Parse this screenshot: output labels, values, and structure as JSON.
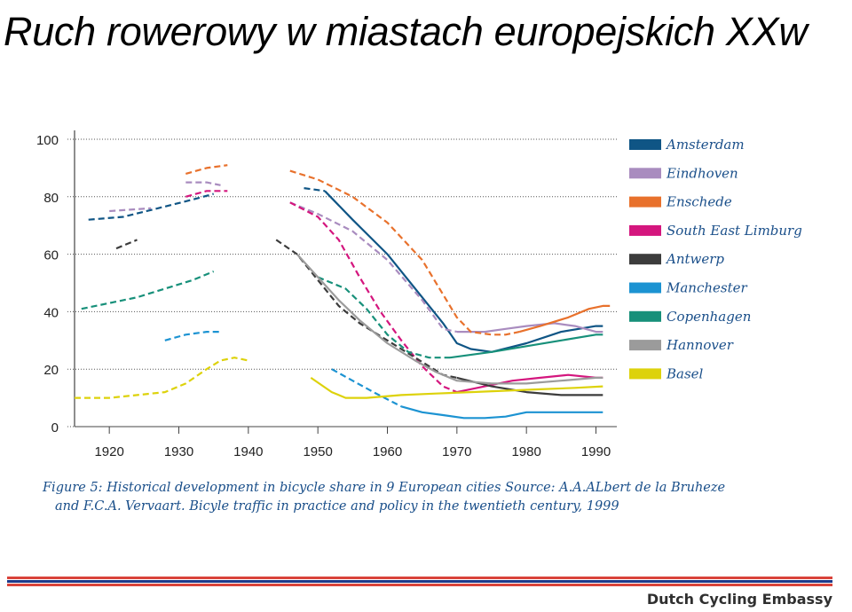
{
  "slide": {
    "title": "Ruch rowerowy w miastach europejskich XXw",
    "caption_line1": "Figure 5: Historical development in bicycle share in 9 European cities Source: A.A.ALbert de la Bruheze",
    "caption_line2": "and F.C.A. Vervaart. Bicyle traffic in practice and policy in the twentieth century, 1999",
    "footer": "Dutch Cycling Embassy",
    "stripe_colors": [
      "#d9433a",
      "#1e3a8a",
      "#d9433a"
    ]
  },
  "chart_data": {
    "type": "line",
    "title": "",
    "xlabel": "",
    "ylabel": "",
    "xlim": [
      1915,
      1993
    ],
    "ylim": [
      0,
      100
    ],
    "xticks": [
      1920,
      1930,
      1940,
      1950,
      1960,
      1970,
      1980,
      1990
    ],
    "yticks": [
      0,
      20,
      40,
      60,
      80,
      100
    ],
    "grid": "dotted horizontal",
    "legend": "right",
    "series": [
      {
        "name": "Amsterdam",
        "color": "#0f5585",
        "segments": [
          {
            "style": "dashed",
            "points": [
              [
                1917,
                72
              ],
              [
                1922,
                73
              ],
              [
                1927,
                76
              ],
              [
                1932,
                79
              ],
              [
                1935,
                81
              ]
            ]
          },
          {
            "style": "dashed",
            "points": [
              [
                1948,
                83
              ],
              [
                1951,
                82
              ]
            ]
          },
          {
            "style": "solid",
            "points": [
              [
                1951,
                82
              ],
              [
                1955,
                72
              ],
              [
                1960,
                60
              ],
              [
                1965,
                45
              ],
              [
                1968,
                36
              ],
              [
                1970,
                29
              ],
              [
                1972,
                27
              ],
              [
                1975,
                26
              ],
              [
                1980,
                29
              ],
              [
                1985,
                33
              ],
              [
                1990,
                35
              ],
              [
                1991,
                35
              ]
            ]
          }
        ]
      },
      {
        "name": "Eindhoven",
        "color": "#a98cbf",
        "segments": [
          {
            "style": "dashed",
            "points": [
              [
                1920,
                75
              ],
              [
                1923,
                75.5
              ],
              [
                1926,
                76
              ]
            ]
          },
          {
            "style": "dashed",
            "points": [
              [
                1931,
                85
              ],
              [
                1934,
                85
              ],
              [
                1936,
                84
              ]
            ]
          },
          {
            "style": "dashed",
            "points": [
              [
                1946,
                78
              ],
              [
                1950,
                74
              ],
              [
                1955,
                68
              ],
              [
                1960,
                58
              ],
              [
                1965,
                44
              ],
              [
                1968,
                34
              ],
              [
                1970,
                33
              ]
            ]
          },
          {
            "style": "solid",
            "points": [
              [
                1970,
                33
              ],
              [
                1974,
                33
              ],
              [
                1977,
                34
              ],
              [
                1980,
                35
              ],
              [
                1984,
                36
              ],
              [
                1987,
                35
              ],
              [
                1990,
                33
              ],
              [
                1991,
                33
              ]
            ]
          }
        ]
      },
      {
        "name": "Enschede",
        "color": "#e8712c",
        "segments": [
          {
            "style": "dashed",
            "points": [
              [
                1931,
                88
              ],
              [
                1934,
                90
              ],
              [
                1937,
                91
              ]
            ]
          },
          {
            "style": "dashed",
            "points": [
              [
                1946,
                89
              ],
              [
                1950,
                86
              ],
              [
                1955,
                80
              ],
              [
                1960,
                71
              ],
              [
                1965,
                58
              ],
              [
                1968,
                46
              ],
              [
                1970,
                38
              ],
              [
                1972,
                33
              ],
              [
                1975,
                32
              ],
              [
                1977,
                32
              ],
              [
                1979,
                33
              ]
            ]
          },
          {
            "style": "solid",
            "points": [
              [
                1979,
                33
              ],
              [
                1982,
                35
              ],
              [
                1986,
                38
              ],
              [
                1989,
                41
              ],
              [
                1991,
                42
              ],
              [
                1992,
                42
              ]
            ]
          }
        ]
      },
      {
        "name": "South East Limburg",
        "color": "#d4167e",
        "segments": [
          {
            "style": "dashed",
            "points": [
              [
                1931,
                80
              ],
              [
                1934,
                82
              ],
              [
                1937,
                82
              ]
            ]
          },
          {
            "style": "dashed",
            "points": [
              [
                1946,
                78
              ],
              [
                1950,
                73
              ],
              [
                1953,
                65
              ],
              [
                1956,
                52
              ],
              [
                1959,
                40
              ],
              [
                1962,
                30
              ],
              [
                1965,
                21
              ],
              [
                1968,
                14
              ],
              [
                1970,
                12
              ]
            ]
          },
          {
            "style": "solid",
            "points": [
              [
                1970,
                12
              ],
              [
                1974,
                14
              ],
              [
                1978,
                16
              ],
              [
                1982,
                17
              ],
              [
                1986,
                18
              ],
              [
                1990,
                17
              ],
              [
                1991,
                17
              ]
            ]
          }
        ]
      },
      {
        "name": "Antwerp",
        "color": "#3c3c3c",
        "segments": [
          {
            "style": "dashed",
            "points": [
              [
                1921,
                62
              ],
              [
                1924,
                65
              ]
            ]
          },
          {
            "style": "dashed",
            "points": [
              [
                1944,
                65
              ],
              [
                1947,
                60
              ],
              [
                1950,
                51
              ],
              [
                1953,
                42
              ],
              [
                1956,
                36
              ],
              [
                1960,
                30
              ],
              [
                1964,
                24
              ],
              [
                1968,
                18
              ],
              [
                1970,
                17
              ]
            ]
          },
          {
            "style": "solid",
            "points": [
              [
                1970,
                17
              ],
              [
                1975,
                14
              ],
              [
                1980,
                12
              ],
              [
                1985,
                11
              ],
              [
                1990,
                11
              ],
              [
                1991,
                11
              ]
            ]
          }
        ]
      },
      {
        "name": "Manchester",
        "color": "#1c93d2",
        "segments": [
          {
            "style": "dashed",
            "points": [
              [
                1928,
                30
              ],
              [
                1931,
                32
              ],
              [
                1934,
                33
              ],
              [
                1936,
                33
              ]
            ]
          },
          {
            "style": "dashed",
            "points": [
              [
                1952,
                20
              ],
              [
                1955,
                16
              ],
              [
                1958,
                12
              ],
              [
                1962,
                7
              ]
            ]
          },
          {
            "style": "solid",
            "points": [
              [
                1962,
                7
              ],
              [
                1965,
                5
              ],
              [
                1968,
                4
              ],
              [
                1971,
                3
              ],
              [
                1974,
                3
              ],
              [
                1977,
                3.5
              ],
              [
                1980,
                5
              ],
              [
                1985,
                5
              ],
              [
                1990,
                5
              ],
              [
                1991,
                5
              ]
            ]
          }
        ]
      },
      {
        "name": "Copenhagen",
        "color": "#17907a",
        "segments": [
          {
            "style": "dashed",
            "points": [
              [
                1916,
                41
              ],
              [
                1920,
                43
              ],
              [
                1924,
                45
              ],
              [
                1928,
                48
              ],
              [
                1932,
                51
              ],
              [
                1935,
                54
              ]
            ]
          },
          {
            "style": "dashed",
            "points": [
              [
                1950,
                52
              ],
              [
                1954,
                48
              ],
              [
                1957,
                41
              ],
              [
                1960,
                32
              ],
              [
                1963,
                26
              ],
              [
                1966,
                24
              ],
              [
                1969,
                24
              ]
            ]
          },
          {
            "style": "solid",
            "points": [
              [
                1969,
                24
              ],
              [
                1975,
                26
              ],
              [
                1980,
                28
              ],
              [
                1985,
                30
              ],
              [
                1990,
                32
              ],
              [
                1991,
                32
              ]
            ]
          }
        ]
      },
      {
        "name": "Hannover",
        "color": "#9b9b9b",
        "segments": [
          {
            "style": "solid",
            "points": [
              [
                1947,
                60
              ],
              [
                1950,
                52
              ],
              [
                1953,
                44
              ],
              [
                1956,
                37
              ],
              [
                1960,
                29
              ],
              [
                1964,
                23
              ],
              [
                1967,
                19
              ],
              [
                1970,
                16
              ],
              [
                1975,
                15
              ],
              [
                1980,
                15
              ],
              [
                1985,
                16
              ],
              [
                1990,
                17
              ],
              [
                1991,
                17
              ]
            ]
          }
        ]
      },
      {
        "name": "Basel",
        "color": "#ddd20b",
        "segments": [
          {
            "style": "dashed",
            "points": [
              [
                1915,
                10
              ],
              [
                1920,
                10
              ],
              [
                1924,
                11
              ],
              [
                1928,
                12
              ],
              [
                1931,
                15
              ],
              [
                1934,
                20
              ],
              [
                1936,
                23
              ],
              [
                1938,
                24
              ],
              [
                1940,
                23
              ]
            ]
          },
          {
            "style": "solid",
            "points": [
              [
                1949,
                17
              ],
              [
                1952,
                12
              ],
              [
                1954,
                10
              ],
              [
                1957,
                10
              ],
              [
                1962,
                11
              ],
              [
                1967,
                11.5
              ],
              [
                1972,
                12
              ],
              [
                1977,
                12.5
              ],
              [
                1982,
                13
              ],
              [
                1987,
                13.5
              ],
              [
                1991,
                14
              ]
            ]
          }
        ]
      }
    ]
  }
}
